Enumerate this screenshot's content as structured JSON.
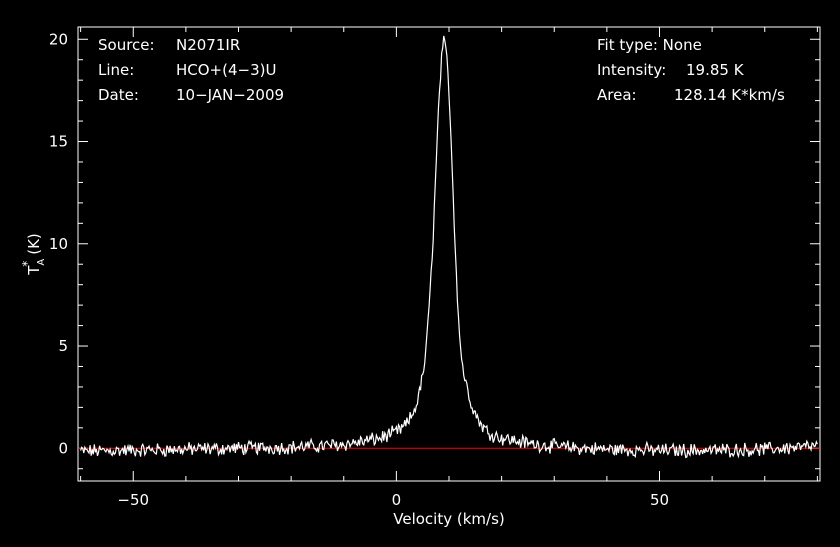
{
  "chart_data": {
    "type": "line",
    "xlabel": "Velocity (km/s)",
    "ylabel": "T*A (K)",
    "xlim": [
      -60.5,
      80.5
    ],
    "ylim": [
      -1.6,
      20.6
    ],
    "x_ticks": [
      -50,
      0,
      50
    ],
    "y_ticks": [
      0,
      5,
      10,
      15,
      20
    ],
    "grid": false,
    "line_color": "#ffffff",
    "baseline_color": "#ff0000",
    "baseline_value": 0,
    "series": [
      {
        "x": [
          -60,
          -50,
          -40,
          -30,
          -20,
          -15,
          -10,
          -7,
          -5,
          -3,
          -2,
          0,
          1,
          2,
          3,
          4,
          5,
          5.5,
          6,
          6.5,
          7,
          7.5,
          8,
          8.5,
          9,
          9.5,
          10,
          10.5,
          11,
          11.5,
          12,
          12.5,
          13,
          14,
          15,
          16,
          17,
          18,
          20,
          22,
          25,
          28,
          30,
          35,
          40,
          50,
          60,
          70,
          80
        ],
        "y": [
          -0.15,
          -0.1,
          -0.05,
          0.0,
          0.05,
          0.1,
          0.2,
          0.3,
          0.4,
          0.5,
          0.6,
          0.8,
          0.95,
          1.2,
          1.6,
          2.3,
          3.5,
          4.5,
          6.0,
          8.0,
          10.5,
          13.5,
          16.5,
          18.8,
          19.85,
          19.4,
          17.5,
          14.5,
          11.0,
          8.0,
          5.5,
          4.2,
          3.4,
          2.4,
          1.7,
          1.2,
          0.9,
          0.7,
          0.5,
          0.4,
          0.25,
          0.15,
          0.1,
          0.0,
          -0.05,
          -0.1,
          -0.1,
          -0.05,
          0.1
        ]
      }
    ],
    "annotations": {
      "source_label": "Source:",
      "source_value": "N2071IR",
      "line_label": "Line:",
      "line_value": "HCO+(4−3)U",
      "date_label": "Date:",
      "date_value": "10−JAN−2009",
      "fit_type": "Fit type: None",
      "intensity_label": "Intensity:",
      "intensity_value": "19.85 K",
      "area_label": "Area:",
      "area_value": "128.14 K*km/s"
    }
  }
}
